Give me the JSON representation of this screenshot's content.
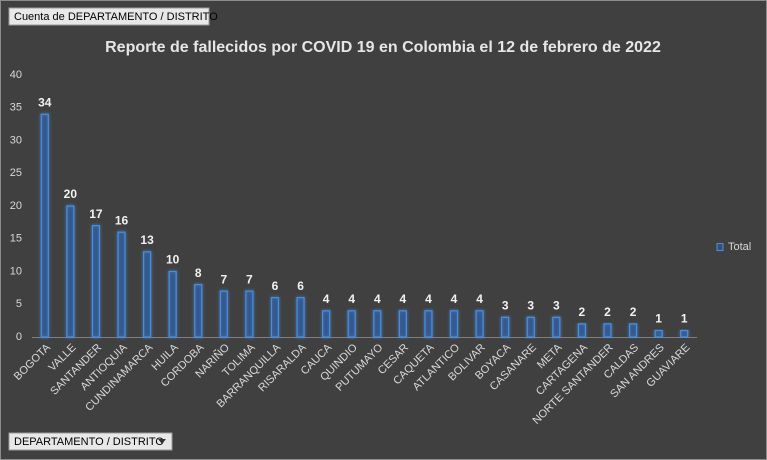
{
  "chart_data": {
    "type": "bar",
    "title": "Reporte de fallecidos por COVID 19 en Colombia el 12 de febrero de 2022",
    "value_field_button": "Cuenta de DEPARTAMENTO / DISTRITO",
    "axis_field_button": "DEPARTAMENTO / DISTRITO",
    "categories": [
      "BOGOTA",
      "VALLE",
      "SANTANDER",
      "ANTIOQUIA",
      "CUNDINAMARCA",
      "HUILA",
      "CORDOBA",
      "NARIÑO",
      "TOLIMA",
      "BARRANQUILLA",
      "RISARALDA",
      "CAUCA",
      "QUINDIO",
      "PUTUMAYO",
      "CESAR",
      "CAQUETA",
      "ATLANTICO",
      "BOLIVAR",
      "BOYACA",
      "CASANARE",
      "META",
      "CARTAGENA",
      "NORTE SANTANDER",
      "CALDAS",
      "SAN ANDRES",
      "GUAVIARE"
    ],
    "series": [
      {
        "name": "Total",
        "color": "#2e5fa8",
        "values": [
          34,
          20,
          17,
          16,
          13,
          10,
          8,
          7,
          7,
          6,
          6,
          4,
          4,
          4,
          4,
          4,
          4,
          4,
          3,
          3,
          3,
          2,
          2,
          2,
          1,
          1
        ]
      }
    ],
    "ylim": [
      0,
      40
    ],
    "yticks": [
      0,
      5,
      10,
      15,
      20,
      25,
      30,
      35,
      40
    ],
    "grid": false,
    "legend": "right",
    "data_labels": true
  }
}
